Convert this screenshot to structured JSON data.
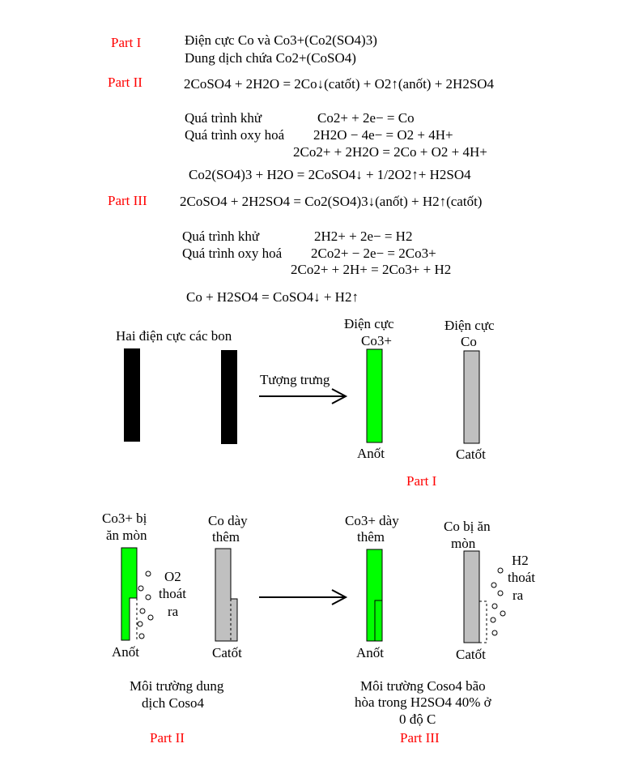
{
  "colors": {
    "part_label": "#ff0000",
    "anode": "#00ff00",
    "cathode": "#c0c0c0",
    "carbon": "#000000"
  },
  "part1": {
    "label": "Part I",
    "line1": "Điện cực Co và Co3+(Co2(SO4)3)",
    "line2": "Dung dịch chứa Co2+(CoSO4)"
  },
  "part2": {
    "label": "Part II",
    "overall": "2CoSO4 + 2H2O = 2Co↓(catốt) + O2↑(anốt) + 2H2SO4",
    "reduction_label": "Quá trình khử",
    "reduction_eq": "Co2+ + 2e− = Co",
    "oxidation_label": "Quá trình oxy hoá",
    "oxidation_eq": "2H2O − 4e− = O2 + 4H+",
    "net_eq": "2Co2+ + 2H2O = 2Co + O2 + 4H+",
    "extra_eq": "Co2(SO4)3 + H2O = 2CoSO4↓ + 1/2O2↑+ H2SO4"
  },
  "part3": {
    "label": "Part III",
    "overall": "2CoSO4 + 2H2SO4 = Co2(SO4)3↓(anốt) + H2↑(catốt)",
    "reduction_label": "Quá trình khử",
    "reduction_eq": "2H2+ + 2e− = H2",
    "oxidation_label": "Quá trình oxy hoá",
    "oxidation_eq": "2Co2+ − 2e− = 2Co3+",
    "net_eq": "2Co2+ + 2H+ = 2Co3+ + H2",
    "extra_eq": "Co + H2SO4 = CoSO4↓ + H2↑"
  },
  "diagram1": {
    "carbon_title": "Hai điện cực các bon",
    "arrow_label": "Tượng trưng",
    "anode_title_1": "Điện cực",
    "anode_title_2": "Co3+",
    "cathode_title_1": "Điện cực",
    "cathode_title_2": "Co",
    "anode_label": "Anốt",
    "cathode_label": "Catốt",
    "part_label": "Part I"
  },
  "diagram2": {
    "anode_title_1": "Co3+ bị",
    "anode_title_2": "ăn mòn",
    "gas_1": "O2",
    "gas_2": "thoát",
    "gas_3": "ra",
    "anode_label": "Anốt",
    "cathode_title_1": "Co dày",
    "cathode_title_2": "thêm",
    "cathode_label": "Catốt",
    "caption_1": "Môi trường dung",
    "caption_2": "dịch Coso4",
    "part_label": "Part II"
  },
  "diagram3": {
    "anode_title_1": "Co3+ dày",
    "anode_title_2": "thêm",
    "anode_label": "Anốt",
    "cathode_title_1": "Co bị ăn",
    "cathode_title_2": "mòn",
    "gas_1": "H2",
    "gas_2": "thoát",
    "gas_3": "ra",
    "cathode_label": "Catốt",
    "caption_1": "Môi trường Coso4 bão",
    "caption_2": "hòa trong H2SO4 40% ở",
    "caption_3": "0 độ C",
    "part_label": "Part III"
  }
}
